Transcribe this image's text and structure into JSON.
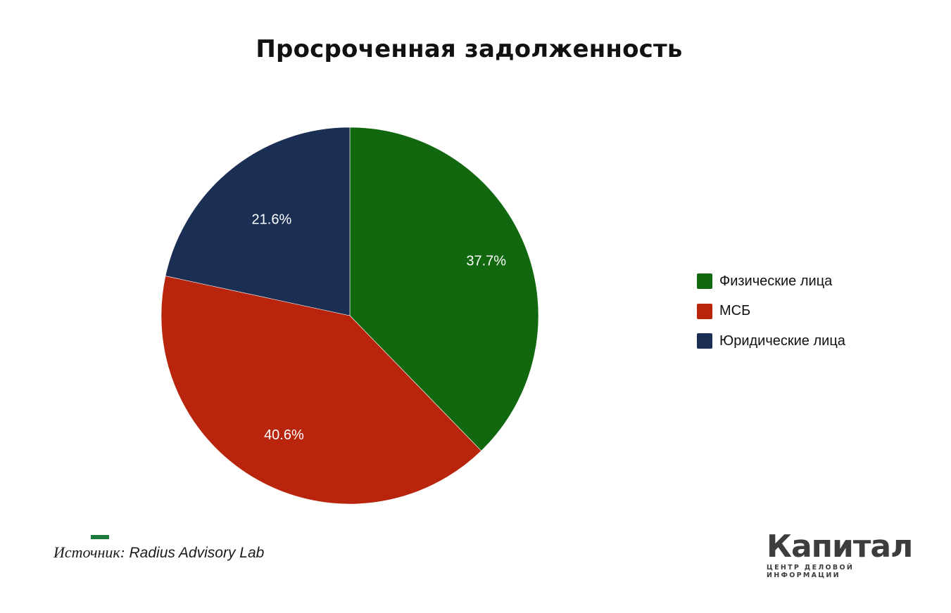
{
  "title": "Просроченная задолженность",
  "chart_data": {
    "type": "pie",
    "title": "Просроченная задолженность",
    "categories": [
      "Физические лица",
      "МСБ",
      "Юридические лица"
    ],
    "values": [
      37.7,
      40.6,
      21.6
    ],
    "labels": [
      "37.7%",
      "40.6%",
      "21.6%"
    ],
    "colors": [
      "#11680f",
      "#b8250c",
      "#1b2f55"
    ],
    "start_angle": "12 o'clock, clockwise",
    "legend_position": "right"
  },
  "legend": {
    "items": [
      {
        "label": "Физические лица",
        "color": "#11680f"
      },
      {
        "label": "МСБ",
        "color": "#b8250c"
      },
      {
        "label": "Юридические лица",
        "color": "#1b2f55"
      }
    ]
  },
  "source": {
    "label": "Источник:",
    "value": "Radius Advisory Lab"
  },
  "logo": {
    "name": "Капитал",
    "tagline": "ЦЕНТР ДЕЛОВОЙ ИНФОРМАЦИИ",
    "accent_color": "#1b7a3c"
  }
}
